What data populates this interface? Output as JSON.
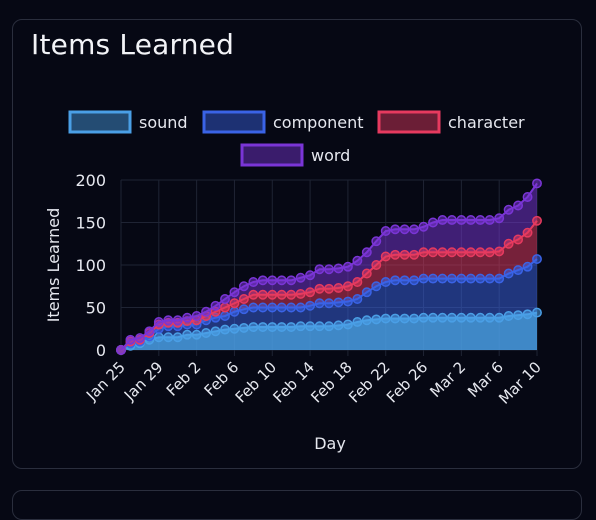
{
  "card": {
    "title": "Items Learned"
  },
  "chart_data": {
    "type": "area",
    "stacked": true,
    "title": "Items Learned",
    "xlabel": "Day",
    "ylabel": "Items Learned",
    "ylim": [
      0,
      200
    ],
    "yticks": [
      0,
      50,
      100,
      150,
      200
    ],
    "xtick_labels": [
      "Jan 25",
      "Jan 29",
      "Feb 2",
      "Feb 6",
      "Feb 10",
      "Feb 14",
      "Feb 18",
      "Feb 22",
      "Feb 26",
      "Mar 2",
      "Mar 6",
      "Mar 10"
    ],
    "x": [
      "Jan 25",
      "Jan 26",
      "Jan 27",
      "Jan 28",
      "Jan 29",
      "Jan 30",
      "Jan 31",
      "Feb 1",
      "Feb 2",
      "Feb 3",
      "Feb 4",
      "Feb 5",
      "Feb 6",
      "Feb 7",
      "Feb 8",
      "Feb 9",
      "Feb 10",
      "Feb 11",
      "Feb 12",
      "Feb 13",
      "Feb 14",
      "Feb 15",
      "Feb 16",
      "Feb 17",
      "Feb 18",
      "Feb 19",
      "Feb 20",
      "Feb 21",
      "Feb 22",
      "Feb 23",
      "Feb 24",
      "Feb 25",
      "Feb 26",
      "Feb 27",
      "Feb 28",
      "Mar 1",
      "Mar 2",
      "Mar 3",
      "Mar 4",
      "Mar 5",
      "Mar 6",
      "Mar 7",
      "Mar 8",
      "Mar 9",
      "Mar 10"
    ],
    "legend_position": "top",
    "grid": true,
    "series": [
      {
        "name": "sound",
        "color": "#4a9fe6",
        "values": [
          0,
          5,
          8,
          12,
          15,
          15,
          15,
          18,
          18,
          20,
          22,
          24,
          25,
          26,
          27,
          27,
          27,
          27,
          27,
          28,
          28,
          28,
          28,
          29,
          30,
          33,
          35,
          36,
          37,
          37,
          37,
          37,
          38,
          38,
          38,
          38,
          38,
          38,
          38,
          38,
          38,
          40,
          41,
          42,
          44
        ]
      },
      {
        "name": "component",
        "color": "#3a63e6",
        "values": [
          0,
          8,
          10,
          16,
          25,
          28,
          28,
          30,
          30,
          35,
          38,
          40,
          45,
          48,
          50,
          50,
          50,
          50,
          50,
          50,
          52,
          55,
          55,
          56,
          57,
          60,
          68,
          75,
          80,
          82,
          82,
          82,
          84,
          84,
          84,
          84,
          84,
          84,
          84,
          84,
          84,
          90,
          94,
          98,
          107
        ]
      },
      {
        "name": "character",
        "color": "#e63a5f",
        "values": [
          0,
          10,
          12,
          20,
          30,
          32,
          32,
          34,
          35,
          40,
          45,
          50,
          55,
          60,
          65,
          65,
          65,
          65,
          65,
          66,
          68,
          72,
          72,
          73,
          75,
          80,
          90,
          100,
          110,
          112,
          112,
          112,
          115,
          115,
          115,
          115,
          115,
          115,
          115,
          115,
          116,
          125,
          130,
          138,
          152
        ]
      },
      {
        "name": "word",
        "color": "#7a35d6",
        "values": [
          0,
          12,
          14,
          22,
          33,
          35,
          35,
          38,
          40,
          45,
          52,
          60,
          68,
          75,
          80,
          82,
          82,
          82,
          82,
          85,
          88,
          95,
          95,
          96,
          98,
          105,
          115,
          128,
          140,
          142,
          142,
          142,
          145,
          150,
          153,
          153,
          153,
          153,
          153,
          153,
          155,
          165,
          170,
          180,
          196
        ]
      }
    ]
  }
}
